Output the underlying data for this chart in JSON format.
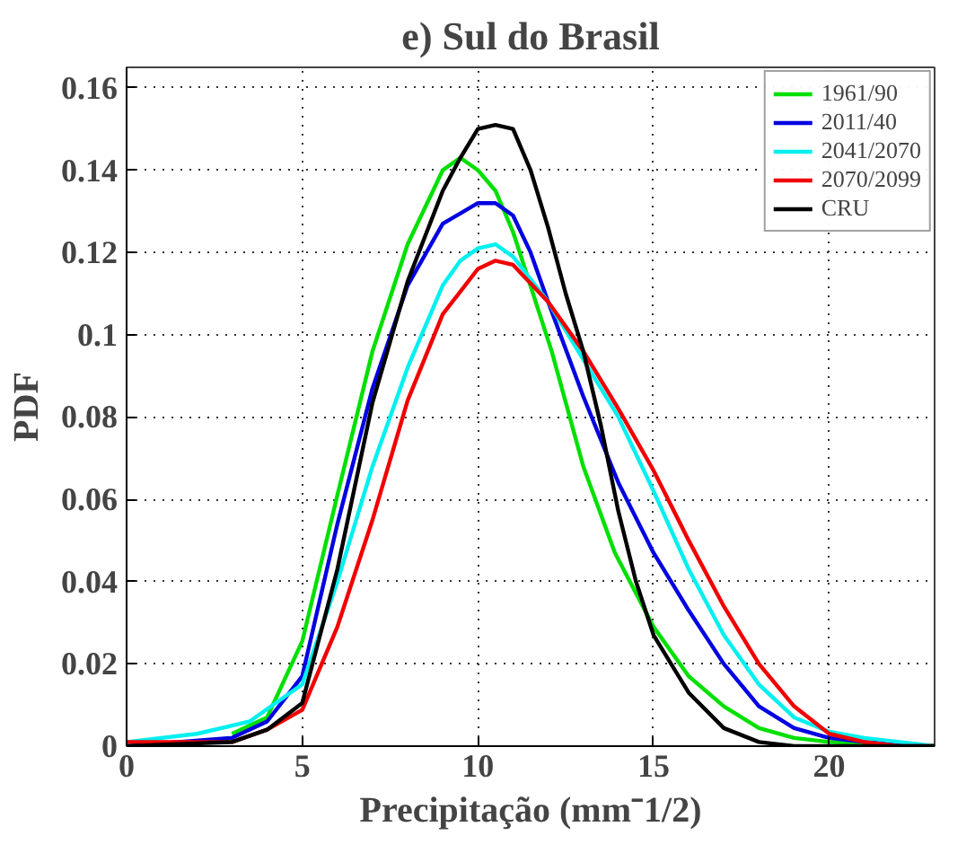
{
  "chart_data": {
    "type": "line",
    "title": "e) Sul do Brasil",
    "xlabel": "Precipitação (mm⁻1/2)",
    "ylabel": "PDF",
    "xlim": [
      0,
      23
    ],
    "ylim": [
      0,
      0.165
    ],
    "xticks": [
      0,
      5,
      10,
      15,
      20
    ],
    "yticks": [
      0,
      0.02,
      0.04,
      0.06,
      0.08,
      0.1,
      0.12,
      0.14,
      0.16
    ],
    "grid": true,
    "legend": "top right",
    "line_style": "solid",
    "series": [
      {
        "name": "1961/90",
        "color": "#00e000",
        "x": [
          3,
          4,
          5,
          6,
          7,
          8,
          9,
          9.5,
          10,
          10.5,
          11,
          12.1,
          13,
          13.9,
          15,
          16,
          17,
          18,
          19,
          20,
          23
        ],
        "values": [
          0.003,
          0.007,
          0.0255,
          0.061,
          0.096,
          0.122,
          0.14,
          0.143,
          0.14,
          0.135,
          0.125,
          0.096,
          0.068,
          0.047,
          0.029,
          0.017,
          0.0097,
          0.0044,
          0.002,
          0.001,
          0
        ]
      },
      {
        "name": "2011/40",
        "color": "#0000e0",
        "x": [
          0,
          3,
          4,
          5,
          6,
          7,
          8,
          9,
          10,
          10.5,
          11,
          11.5,
          12,
          13,
          14,
          15,
          16,
          17,
          18,
          19,
          20,
          21,
          23
        ],
        "values": [
          0,
          0.002,
          0.006,
          0.017,
          0.054,
          0.087,
          0.112,
          0.127,
          0.132,
          0.132,
          0.129,
          0.12,
          0.108,
          0.085,
          0.064,
          0.047,
          0.033,
          0.02,
          0.0097,
          0.0044,
          0.002,
          0.001,
          0
        ]
      },
      {
        "name": "2041/2070",
        "color": "#00f0f0",
        "x": [
          0,
          2,
          3,
          3.5,
          4,
          5,
          6,
          7,
          8,
          9,
          9.5,
          10,
          10.5,
          11,
          12,
          13,
          14,
          15,
          16,
          17,
          18,
          19,
          20,
          21,
          22,
          23
        ],
        "values": [
          0.001,
          0.003,
          0.005,
          0.006,
          0.009,
          0.015,
          0.04,
          0.068,
          0.092,
          0.112,
          0.118,
          0.121,
          0.122,
          0.119,
          0.108,
          0.094,
          0.08,
          0.062,
          0.043,
          0.027,
          0.015,
          0.007,
          0.0035,
          0.002,
          0.001,
          0
        ]
      },
      {
        "name": "2070/2099",
        "color": "#f00000",
        "x": [
          0,
          3,
          4,
          5,
          6,
          7,
          8,
          9,
          10,
          10.5,
          11,
          12,
          13,
          14,
          15,
          16,
          17,
          18,
          19,
          20,
          21,
          22,
          23
        ],
        "values": [
          0.001,
          0.001,
          0.004,
          0.0088,
          0.029,
          0.055,
          0.084,
          0.105,
          0.116,
          0.118,
          0.117,
          0.108,
          0.096,
          0.082,
          0.067,
          0.05,
          0.034,
          0.02,
          0.0097,
          0.003,
          0.001,
          0,
          0
        ]
      },
      {
        "name": "CRU",
        "color": "#000000",
        "x": [
          0,
          3,
          4,
          5,
          6,
          7,
          8,
          9,
          9.5,
          10,
          10.5,
          11,
          11.5,
          12,
          12.5,
          13,
          13.5,
          14,
          14.5,
          15,
          16,
          17,
          18,
          19,
          23
        ],
        "values": [
          0,
          0.001,
          0.004,
          0.0105,
          0.043,
          0.0835,
          0.113,
          0.135,
          0.143,
          0.15,
          0.151,
          0.15,
          0.14,
          0.126,
          0.11,
          0.096,
          0.078,
          0.057,
          0.04,
          0.027,
          0.013,
          0.0044,
          0.001,
          0,
          0
        ]
      }
    ]
  }
}
